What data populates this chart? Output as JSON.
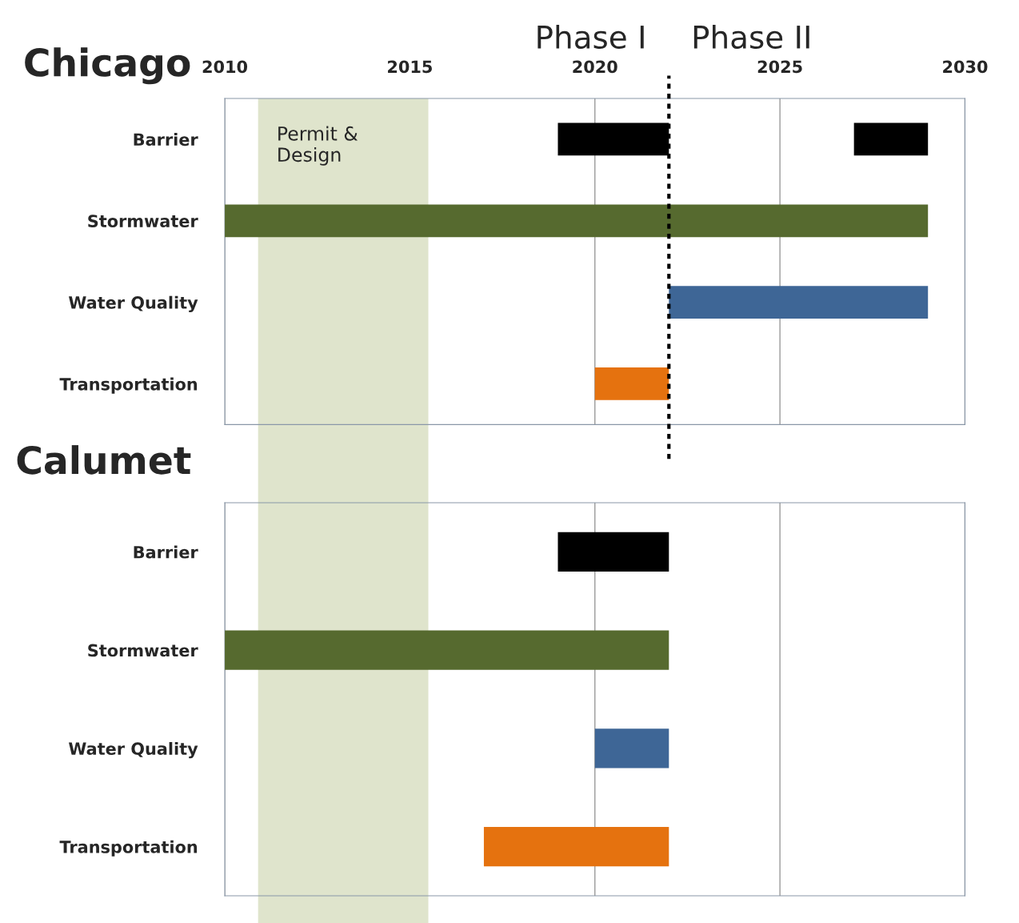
{
  "chart_data": [
    {
      "type": "bar",
      "orientation": "horizontal",
      "title": "Chicago",
      "categories": [
        "Barrier",
        "Stormwater",
        "Water Quality",
        "Transportation"
      ],
      "series": [
        {
          "colors": [
            "#000000",
            "#566a2f",
            "#3e6696",
            "#e5720f"
          ],
          "base": [
            2027,
            2010,
            2022,
            2020
          ],
          "values": [
            2,
            19,
            7,
            2
          ]
        },
        {
          "color": "#000000",
          "base": [
            2019,
            null,
            null,
            null
          ],
          "values": [
            3,
            null,
            null,
            null
          ]
        }
      ],
      "xlim": [
        2010,
        2030
      ],
      "xticks": [
        2010,
        2015,
        2020,
        2025,
        2030
      ],
      "grid": "x",
      "bands": [
        {
          "axis": "x",
          "from": 2010.9,
          "to": 2015.5,
          "label": "Permit &\nDesign",
          "color": "#dfe4cc"
        }
      ],
      "ref_lines": [
        {
          "axis": "x",
          "value": 2022,
          "line_style": "dotted",
          "color": "#000000"
        }
      ],
      "annotations": [
        "Phase I",
        "Phase II"
      ]
    },
    {
      "type": "bar",
      "orientation": "horizontal",
      "title": "Calumet",
      "categories": [
        "Barrier",
        "Stormwater",
        "Water Quality",
        "Transportation"
      ],
      "series": [
        {
          "colors": [
            "#000000",
            "#566a2f",
            "#3e6696",
            "#e5720f"
          ],
          "base": [
            2019,
            2010,
            2020,
            2017
          ],
          "values": [
            3,
            12,
            2,
            5
          ]
        }
      ],
      "xlim": [
        2010,
        2030
      ],
      "xticks": [
        2010,
        2015,
        2020,
        2025,
        2030
      ],
      "grid": "x",
      "tick_labels": "y",
      "bands": [
        {
          "axis": "x",
          "from": 2010.9,
          "to": 2015.5,
          "color": "#dfe4cc"
        }
      ]
    }
  ]
}
